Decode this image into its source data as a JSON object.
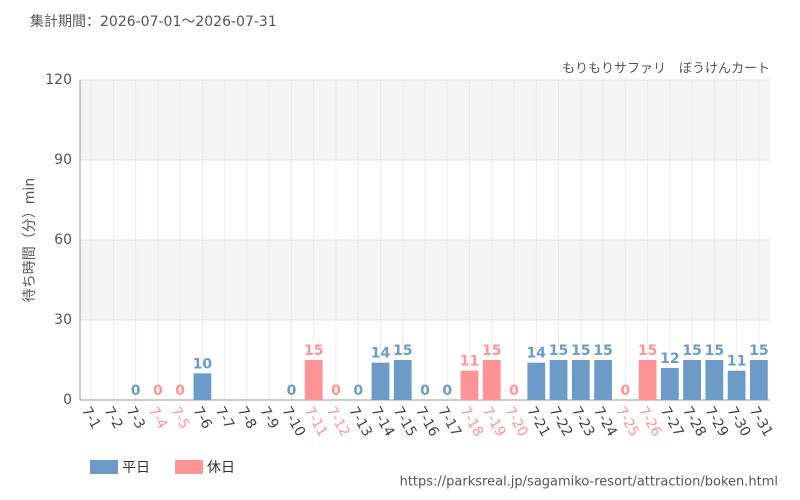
{
  "chart_data": {
    "type": "bar",
    "title": "集計期間：2026-07-01～2026-07-31",
    "subtitle": "もりもりサファリ　ぼうけんカート",
    "y_label": "待ち時間（分）min",
    "footer": "https://parksreal.jp/sagamiko-resort/attraction/boken.html",
    "categories": [
      "7-1",
      "7-2",
      "7-3",
      "7-4",
      "7-5",
      "7-6",
      "7-7",
      "7-8",
      "7-9",
      "7-10",
      "7-11",
      "7-12",
      "7-13",
      "7-14",
      "7-15",
      "7-16",
      "7-17",
      "7-18",
      "7-19",
      "7-20",
      "7-21",
      "7-22",
      "7-23",
      "7-24",
      "7-25",
      "7-26",
      "7-27",
      "7-28",
      "7-29",
      "7-30",
      "7-31"
    ],
    "series": [
      {
        "name": "平日",
        "color": "#6b9bc6",
        "values": [
          null,
          null,
          0,
          null,
          null,
          10,
          null,
          null,
          null,
          0,
          null,
          null,
          0,
          14,
          15,
          0,
          0,
          null,
          null,
          null,
          14,
          15,
          15,
          15,
          null,
          null,
          12,
          15,
          15,
          11,
          15
        ]
      },
      {
        "name": "休日",
        "color": "#ff9496",
        "values": [
          null,
          null,
          null,
          0,
          0,
          null,
          null,
          null,
          null,
          null,
          15,
          0,
          null,
          null,
          null,
          null,
          null,
          11,
          15,
          0,
          null,
          null,
          null,
          null,
          0,
          15,
          null,
          null,
          null,
          null,
          null
        ]
      }
    ],
    "ylim": [
      0,
      120
    ],
    "yticks": [
      0,
      30,
      60,
      90,
      120
    ],
    "grid": true,
    "legend": "bottom-left"
  }
}
